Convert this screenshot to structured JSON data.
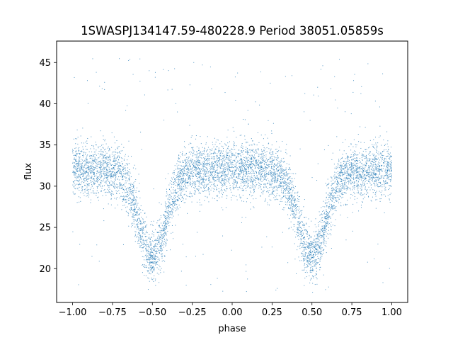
{
  "chart_data": {
    "type": "scatter",
    "title": "1SWASPJ134147.59-480228.9 Period 38051.05859s",
    "xlabel": "phase",
    "ylabel": "flux",
    "xlim": [
      -1.1,
      1.1
    ],
    "ylim": [
      15.9,
      47.6
    ],
    "x_ticks": [
      -1.0,
      -0.75,
      -0.5,
      -0.25,
      0.0,
      0.25,
      0.5,
      0.75,
      1.0
    ],
    "x_tick_labels": [
      "−1.00",
      "−0.75",
      "−0.50",
      "−0.25",
      "0.00",
      "0.25",
      "0.50",
      "0.75",
      "1.00"
    ],
    "y_ticks": [
      20,
      25,
      30,
      35,
      40,
      45
    ],
    "y_tick_labels": [
      "20",
      "25",
      "30",
      "35",
      "40",
      "45"
    ],
    "grid": false,
    "marker_color": "#1f77b4",
    "series": [
      {
        "baseline_flux": 32.0,
        "scatter_sigma": 1.6,
        "eclipses": [
          {
            "phase_center": -0.5,
            "min_flux": 21.5,
            "width": 0.12
          },
          {
            "phase_center": 0.5,
            "min_flux": 21.5,
            "width": 0.12
          }
        ],
        "phase_range": [
          -1.0,
          1.0
        ],
        "flux_range": [
          17.0,
          46.0
        ]
      }
    ]
  }
}
